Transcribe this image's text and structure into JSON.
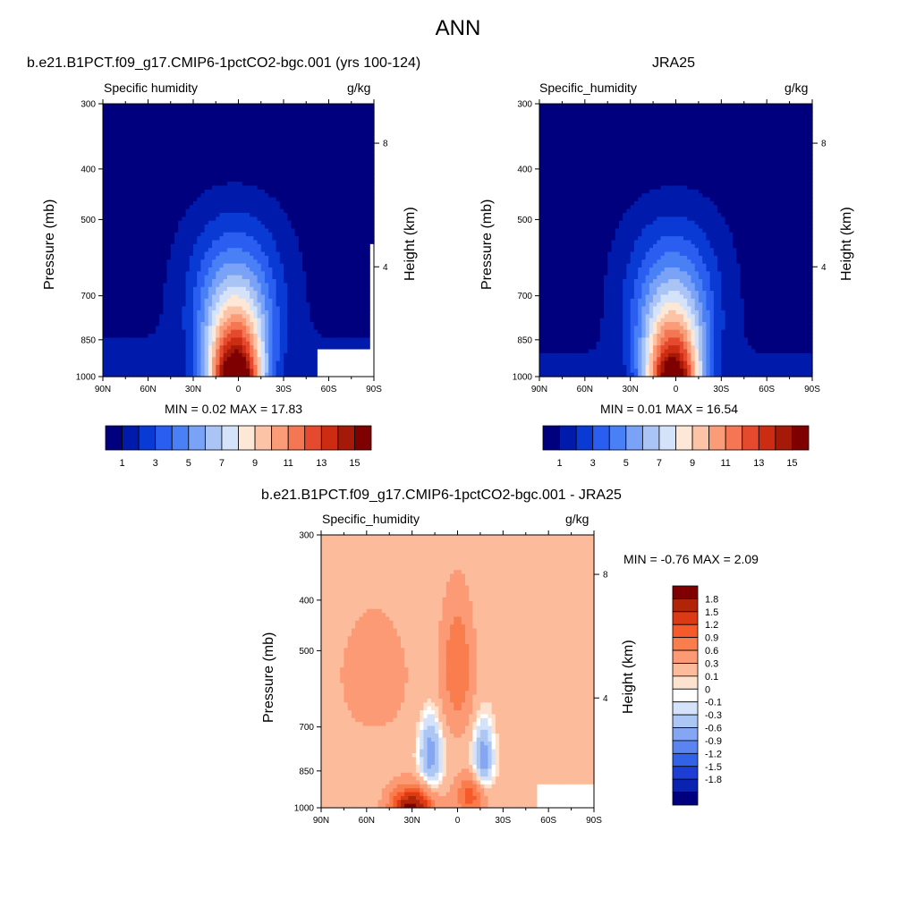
{
  "page_title": "ANN",
  "chart_data": [
    {
      "id": "test",
      "type": "heatmap",
      "title": "b.e21.B1PCT.f09_g17.CMIP6-1pctCO2-bgc.001 (yrs 100-124)",
      "left_string": "Specific humidity",
      "right_string": "g/kg",
      "ylabel": "Pressure (mb)",
      "ylabel_right": "Height (km)",
      "x_ticks": [
        "90N",
        "60N",
        "30N",
        "0",
        "30S",
        "60S",
        "90S"
      ],
      "y_ticks": [
        "300",
        "400",
        "500",
        "700",
        "850",
        "1000"
      ],
      "y_ticks_right": [
        "8",
        "4"
      ],
      "xlim": [
        90,
        -90
      ],
      "ylim": [
        1000,
        300
      ],
      "min_max_text": "MIN =   0.02  MAX =  17.83",
      "stats": {
        "min": 0.02,
        "max": 17.83
      },
      "colorbar_levels": [
        0,
        1,
        2,
        3,
        4,
        5,
        6,
        7,
        8,
        9,
        10,
        11,
        12,
        13,
        14,
        15,
        16
      ],
      "colorbar_labels": [
        "1",
        "3",
        "5",
        "7",
        "9",
        "11",
        "13",
        "15"
      ]
    },
    {
      "id": "ref",
      "type": "heatmap",
      "title": "JRA25",
      "left_string": "Specific_humidity",
      "right_string": "g/kg",
      "ylabel": "Pressure (mb)",
      "ylabel_right": "Height (km)",
      "x_ticks": [
        "90N",
        "60N",
        "30N",
        "0",
        "30S",
        "60S",
        "90S"
      ],
      "y_ticks": [
        "300",
        "400",
        "500",
        "700",
        "850",
        "1000"
      ],
      "y_ticks_right": [
        "8",
        "4"
      ],
      "xlim": [
        90,
        -90
      ],
      "ylim": [
        1000,
        300
      ],
      "min_max_text": "MIN =   0.01  MAX =  16.54",
      "stats": {
        "min": 0.01,
        "max": 16.54
      },
      "colorbar_levels": [
        0,
        1,
        2,
        3,
        4,
        5,
        6,
        7,
        8,
        9,
        10,
        11,
        12,
        13,
        14,
        15,
        16
      ],
      "colorbar_labels": [
        "1",
        "3",
        "5",
        "7",
        "9",
        "11",
        "13",
        "15"
      ]
    },
    {
      "id": "diff",
      "type": "heatmap",
      "title": "b.e21.B1PCT.f09_g17.CMIP6-1pctCO2-bgc.001 - JRA25",
      "left_string": "Specific_humidity",
      "right_string": "g/kg",
      "ylabel": "Pressure (mb)",
      "ylabel_right": "Height (km)",
      "x_ticks": [
        "90N",
        "60N",
        "30N",
        "0",
        "30S",
        "60S",
        "90S"
      ],
      "y_ticks": [
        "300",
        "400",
        "500",
        "700",
        "850",
        "1000"
      ],
      "y_ticks_right": [
        "8",
        "4"
      ],
      "xlim": [
        90,
        -90
      ],
      "ylim": [
        1000,
        300
      ],
      "min_max_text": "MIN =  -0.76  MAX =   2.09",
      "stats": {
        "min": -0.76,
        "max": 2.09
      },
      "colorbar_labels": [
        "1.8",
        "1.5",
        "1.2",
        "0.9",
        "0.6",
        "0.3",
        "0.1",
        "0",
        "-0.1",
        "-0.3",
        "-0.6",
        "-0.9",
        "-1.2",
        "-1.5",
        "-1.8"
      ]
    }
  ],
  "colors": {
    "sequential": [
      "#00007f",
      "#001aab",
      "#0a3ad4",
      "#2a5ef0",
      "#4a80f5",
      "#7aa3f7",
      "#a9c4f5",
      "#d4e3fa",
      "#fde7d6",
      "#fcc3a6",
      "#fa9c78",
      "#f47652",
      "#e64a2e",
      "#cc2c12",
      "#a51908",
      "#7f0000"
    ],
    "diverging": [
      "#7f0000",
      "#b02408",
      "#dc3a14",
      "#f75a2a",
      "#fa7d4e",
      "#fb9a74",
      "#fcbc9c",
      "#fde3cf",
      "#ffffff",
      "#d4e3fa",
      "#adc7f4",
      "#85a6f2",
      "#5a84ef",
      "#3262e8",
      "#1c3ed4",
      "#0a22b0",
      "#00007f"
    ],
    "missing": "#ffffff"
  }
}
